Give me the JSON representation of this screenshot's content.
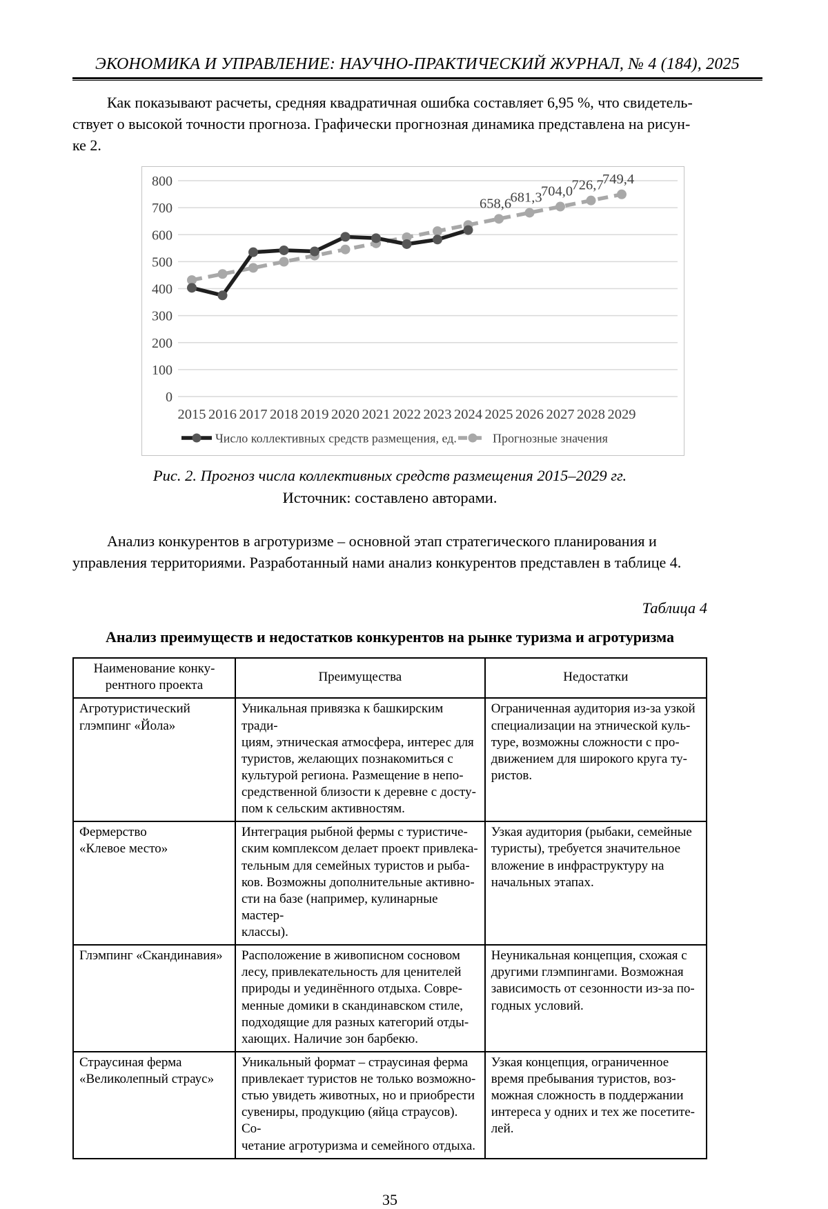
{
  "page": {
    "header": "ЭКОНОМИКА И УПРАВЛЕНИЕ: НАУЧНО-ПРАКТИЧЕСКИЙ ЖУРНАЛ, № 4 (184), 2025",
    "page_number": "35"
  },
  "paragraph_intro": "Как показывают расчеты, средняя квадратичная ошибка составляет 6,95 %, что свидетель-\nствует о высокой точности прогноза. Графически прогнозная динамика представлена на рисун-\nке 2.",
  "figure": {
    "caption": "Рис. 2. Прогноз числа коллективных средств размещения 2015–2029 гг.",
    "source": "Источник: составлено авторами."
  },
  "chart_data": {
    "type": "line",
    "x": [
      2015,
      2016,
      2017,
      2018,
      2019,
      2020,
      2021,
      2022,
      2023,
      2024,
      2025,
      2026,
      2027,
      2028,
      2029
    ],
    "series": [
      {
        "name": "Число коллективных средств размещения, ед.",
        "values": [
          403,
          375,
          535,
          542,
          538,
          592,
          587,
          565,
          582,
          617
        ],
        "color": "#1f1f1f",
        "marker_color": "#565656",
        "dash": false
      },
      {
        "name": "Прогнозные значения",
        "values": [
          431.6,
          454.3,
          477.0,
          499.7,
          522.4,
          545.1,
          567.8,
          590.5,
          613.2,
          635.9,
          658.6,
          681.3,
          704.0,
          726.7,
          749.4
        ],
        "color": "#a8a8a8",
        "marker_color": "#a8a8a8",
        "dash": true
      }
    ],
    "data_labels": [
      "",
      "",
      "",
      "",
      "",
      "",
      "",
      "",
      "",
      "",
      "658,6",
      "681,3",
      "704,0",
      "726,7",
      "749,4"
    ],
    "ylim": [
      0,
      800
    ],
    "ytick_step": 100,
    "grid": true,
    "legend_position": "bottom",
    "grid_color": "#d9d9d9",
    "text_color": "#3f3f3f"
  },
  "paragraph_analysis": "Анализ конкурентов в агротуризме – основной этап стратегического планирования и\nуправления территориями. Разработанный нами анализ конкурентов представлен в таблице 4.",
  "table_label": "Таблица 4",
  "table_title": "Анализ преимуществ и недостатков конкурентов на рынке туризма и агротуризма",
  "table": {
    "headers": {
      "name": "Наименование конку-\nрентного проекта",
      "advantages": "Преимущества",
      "disadvantages": "Недостатки"
    },
    "rows": [
      {
        "name": "Агротуристический\nглэмпинг «Йола»",
        "advantages": "Уникальная привязка к башкирским тради-\nциям, этническая атмосфера, интерес для\nтуристов, желающих познакомиться с\nкультурой региона. Размещение в непо-\nсредственной близости к деревне с досту-\nпом к сельским активностям.",
        "disadvantages": "Ограниченная аудитория из-за узкой\nспециализации на этнической куль-\nтуре, возможны сложности с про-\nдвижением для широкого круга ту-\nристов."
      },
      {
        "name": "Фермерство\n«Клевое место»",
        "advantages": "Интеграция рыбной фермы с туристиче-\nским комплексом делает проект привлека-\nтельным для семейных туристов и рыба-\nков. Возможны дополнительные активно-\nсти на базе (например, кулинарные мастер-\nклассы).",
        "disadvantages": "Узкая аудитория (рыбаки, семейные\nтуристы), требуется значительное\nвложение в инфраструктуру на\nначальных этапах."
      },
      {
        "name": "Глэмпинг «Скандинавия»",
        "advantages": "Расположение в живописном сосновом\nлесу, привлекательность для ценителей\nприроды и уединённого отдыха. Совре-\nменные домики в скандинавском стиле,\nподходящие для разных категорий отды-\nхающих. Наличие зон барбекю.",
        "disadvantages": "Неуникальная концепция, схожая с\nдругими глэмпингами. Возможная\nзависимость от сезонности из-за по-\nгодных условий."
      },
      {
        "name": "Страусиная ферма\n«Великолепный страус»",
        "advantages": "Уникальный формат – страусиная ферма\nпривлекает туристов не только возможно-\nстью увидеть животных, но и приобрести\nсувениры, продукцию (яйца страусов). Со-\nчетание агротуризма и семейного отдыха.",
        "disadvantages": "Узкая концепция, ограниченное\nвремя пребывания туристов, воз-\nможная сложность в поддержании\nинтереса у одних и тех же посетите-\nлей."
      }
    ]
  }
}
